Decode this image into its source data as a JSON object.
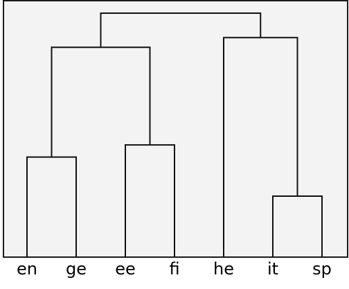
{
  "dendrogram": {
    "leaves": [
      "en",
      "ge",
      "ee",
      "fi",
      "he",
      "it",
      "sp"
    ],
    "merges": [
      {
        "id": "m1",
        "children": [
          "en",
          "ge"
        ],
        "height": 0.41
      },
      {
        "id": "m2",
        "children": [
          "ee",
          "fi"
        ],
        "height": 0.46
      },
      {
        "id": "m3",
        "children": [
          "it",
          "sp"
        ],
        "height": 0.25
      },
      {
        "id": "m4",
        "children": [
          "m1",
          "m2"
        ],
        "height": 0.86
      },
      {
        "id": "m5",
        "children": [
          "he",
          "m3"
        ],
        "height": 0.9
      },
      {
        "id": "m6",
        "children": [
          "m4",
          "m5"
        ],
        "height": 1.0
      }
    ]
  }
}
